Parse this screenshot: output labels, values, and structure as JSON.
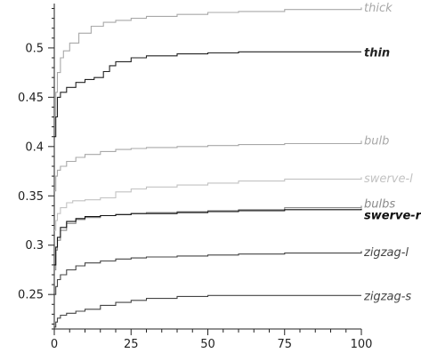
{
  "chart_data": {
    "type": "line",
    "title": "",
    "xlabel": "",
    "ylabel": "",
    "xlim": [
      0,
      100
    ],
    "ylim": [
      0.215,
      0.545
    ],
    "x_ticks": [
      "0",
      "25",
      "50",
      "75",
      "100"
    ],
    "y_ticks": [
      "0.25",
      "0.3",
      "0.35",
      "0.4",
      "0.45",
      "0.5"
    ],
    "grid": false,
    "legend": "inline labels at right end of each line",
    "series": [
      {
        "name": "thick",
        "color": "#a8a8a8",
        "x": [
          0,
          0.5,
          1,
          2,
          3,
          5,
          8,
          12,
          16,
          20,
          25,
          30,
          40,
          50,
          60,
          75,
          100
        ],
        "y": [
          0.43,
          0.455,
          0.475,
          0.49,
          0.497,
          0.505,
          0.515,
          0.522,
          0.526,
          0.528,
          0.53,
          0.532,
          0.534,
          0.536,
          0.537,
          0.539,
          0.541
        ]
      },
      {
        "name": "thin",
        "color": "#222222",
        "x": [
          0,
          0.5,
          1,
          2,
          4,
          7,
          10,
          13,
          16,
          18,
          20,
          25,
          30,
          40,
          50,
          60,
          75,
          100
        ],
        "y": [
          0.41,
          0.43,
          0.45,
          0.455,
          0.46,
          0.465,
          0.468,
          0.47,
          0.476,
          0.482,
          0.486,
          0.49,
          0.492,
          0.494,
          0.495,
          0.496,
          0.496,
          0.496
        ]
      },
      {
        "name": "bulb",
        "color": "#a8a8a8",
        "x": [
          0,
          0.5,
          1,
          2,
          4,
          7,
          10,
          15,
          20,
          25,
          30,
          40,
          50,
          60,
          75,
          100
        ],
        "y": [
          0.355,
          0.37,
          0.376,
          0.38,
          0.385,
          0.389,
          0.392,
          0.395,
          0.397,
          0.398,
          0.399,
          0.4,
          0.401,
          0.402,
          0.403,
          0.406
        ]
      },
      {
        "name": "swerve-l",
        "color": "#c2c2c2",
        "x": [
          0,
          0.5,
          1,
          2,
          4,
          6,
          10,
          15,
          20,
          25,
          30,
          40,
          50,
          60,
          75,
          100
        ],
        "y": [
          0.315,
          0.325,
          0.332,
          0.338,
          0.343,
          0.345,
          0.346,
          0.348,
          0.354,
          0.357,
          0.359,
          0.361,
          0.363,
          0.365,
          0.367,
          0.369
        ]
      },
      {
        "name": "bulbs",
        "color": "#8a8a8a",
        "x": [
          0,
          0.5,
          1,
          2,
          4,
          7,
          10,
          15,
          20,
          25,
          30,
          40,
          50,
          60,
          75,
          100
        ],
        "y": [
          0.275,
          0.295,
          0.305,
          0.315,
          0.322,
          0.326,
          0.328,
          0.33,
          0.331,
          0.332,
          0.333,
          0.334,
          0.335,
          0.336,
          0.338,
          0.34
        ]
      },
      {
        "name": "swerve-r",
        "color": "#111111",
        "x": [
          0,
          0.5,
          1,
          2,
          4,
          7,
          10,
          15,
          20,
          25,
          30,
          40,
          50,
          60,
          75,
          100
        ],
        "y": [
          0.28,
          0.298,
          0.308,
          0.318,
          0.324,
          0.327,
          0.329,
          0.33,
          0.331,
          0.332,
          0.332,
          0.333,
          0.334,
          0.335,
          0.336,
          0.337
        ]
      },
      {
        "name": "zigzag-l",
        "color": "#444444",
        "x": [
          0,
          0.5,
          1,
          2,
          4,
          7,
          10,
          15,
          20,
          25,
          30,
          40,
          50,
          60,
          75,
          100
        ],
        "y": [
          0.25,
          0.258,
          0.265,
          0.27,
          0.275,
          0.279,
          0.282,
          0.284,
          0.286,
          0.287,
          0.288,
          0.289,
          0.29,
          0.291,
          0.292,
          0.294
        ]
      },
      {
        "name": "zigzag-s",
        "color": "#444444",
        "x": [
          0,
          0.5,
          1,
          2,
          4,
          7,
          10,
          15,
          20,
          25,
          30,
          40,
          50,
          60,
          75,
          100
        ],
        "y": [
          0.217,
          0.222,
          0.226,
          0.229,
          0.231,
          0.233,
          0.235,
          0.239,
          0.242,
          0.244,
          0.246,
          0.248,
          0.249,
          0.249,
          0.249,
          0.249
        ]
      }
    ]
  }
}
